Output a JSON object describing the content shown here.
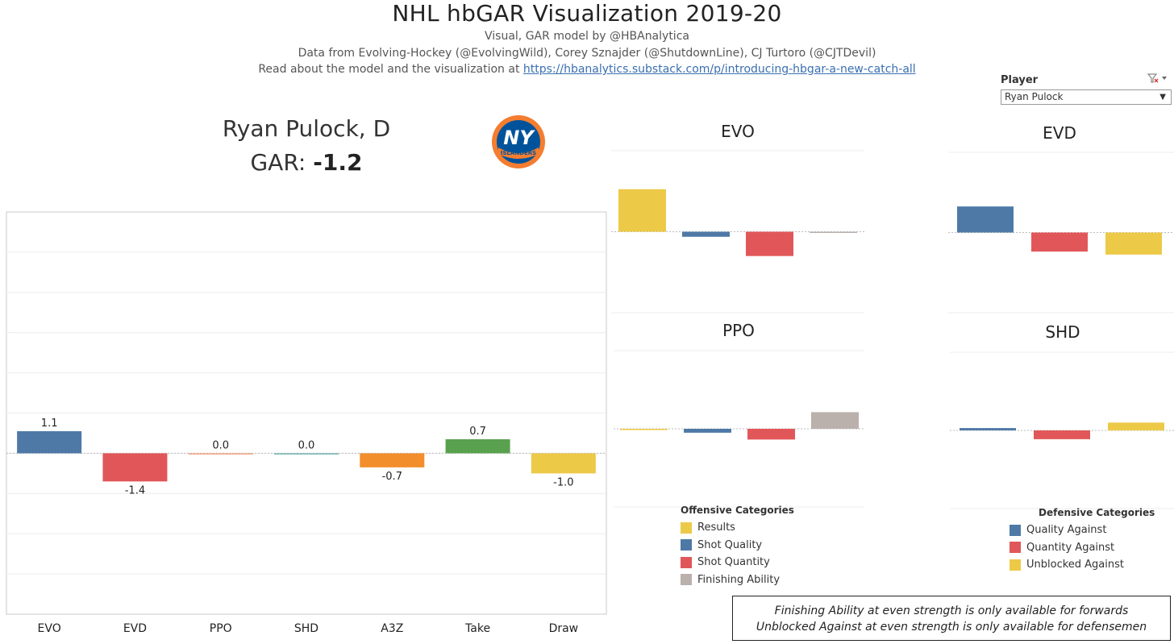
{
  "header": {
    "title": "NHL hbGAR Visualization 2019-20",
    "subtitle1": "Visual, GAR model by @HBAnalytica",
    "subtitle2": "Data from Evolving-Hockey (@EvolvingWild), Corey Sznajder (@ShutdownLine), CJ Turtoro (@CJTDevil)",
    "subtitle3_prefix": "Read about the model and the visualization at ",
    "subtitle3_link": "https://hbanalytics.substack.com/p/introducing-hbgar-a-new-catch-all"
  },
  "filter": {
    "label": "Player",
    "selected": "Ryan Pulock",
    "icon": "filter-clear-icon"
  },
  "player": {
    "name": "Ryan Pulock, D",
    "gar_label": "GAR: ",
    "gar_value": "-1.2",
    "team_logo_text": "NY",
    "team_logo_banner": "ISLANDERS"
  },
  "colors": {
    "blue": "#4e79a7",
    "red": "#e15759",
    "salmon": "#f4a582",
    "teal": "#76b7b2",
    "orange": "#f28e2b",
    "green": "#59a14f",
    "yellow": "#edc948",
    "gray": "#bab0ac"
  },
  "chart_data": [
    {
      "type": "bar",
      "categories": [
        "EVO",
        "EVD",
        "PPO",
        "SHD",
        "A3Z",
        "Take",
        "Draw"
      ],
      "values": [
        1.1,
        -1.4,
        0.0,
        0.0,
        -0.7,
        0.7,
        -1.0
      ],
      "labels": [
        "1.1",
        "-1.4",
        "0.0",
        "0.0",
        "-0.7",
        "0.7",
        "-1.0"
      ],
      "colors": [
        "#4e79a7",
        "#e15759",
        "#f4a582",
        "#76b7b2",
        "#f28e2b",
        "#59a14f",
        "#edc948"
      ],
      "ylim": [
        -8,
        12
      ],
      "grid": true
    },
    {
      "type": "bar",
      "title": "EVO",
      "series": [
        {
          "name": "Results",
          "value": 2.1
        },
        {
          "name": "Shot Quality",
          "value": -0.25
        },
        {
          "name": "Shot Quantity",
          "value": -1.2
        },
        {
          "name": "Finishing Ability",
          "value": -0.05
        }
      ],
      "ylim": [
        -4,
        4
      ]
    },
    {
      "type": "bar",
      "title": "EVD",
      "series": [
        {
          "name": "Quality Against",
          "value": 1.3
        },
        {
          "name": "Quantity Against",
          "value": -0.95
        },
        {
          "name": "Unblocked Against",
          "value": -1.1
        }
      ],
      "ylim": [
        -4,
        4
      ]
    },
    {
      "type": "bar",
      "title": "PPO",
      "series": [
        {
          "name": "Results",
          "value": -0.05
        },
        {
          "name": "Shot Quality",
          "value": -0.2
        },
        {
          "name": "Shot Quantity",
          "value": -0.55
        },
        {
          "name": "Finishing Ability",
          "value": 0.85
        }
      ],
      "ylim": [
        -4,
        4
      ]
    },
    {
      "type": "bar",
      "title": "SHD",
      "series": [
        {
          "name": "Quality Against",
          "value": 0.12
        },
        {
          "name": "Quantity Against",
          "value": -0.45
        },
        {
          "name": "Unblocked Against",
          "value": 0.4
        }
      ],
      "ylim": [
        -4,
        4
      ]
    }
  ],
  "legends": {
    "offensive": {
      "title": "Offensive Categories",
      "items": [
        {
          "label": "Results",
          "color": "#edc948"
        },
        {
          "label": "Shot Quality",
          "color": "#4e79a7"
        },
        {
          "label": "Shot Quantity",
          "color": "#e15759"
        },
        {
          "label": "Finishing Ability",
          "color": "#bab0ac"
        }
      ]
    },
    "defensive": {
      "title": "Defensive Categories",
      "items": [
        {
          "label": "Quality Against",
          "color": "#4e79a7"
        },
        {
          "label": "Quantity Against",
          "color": "#e15759"
        },
        {
          "label": "Unblocked Against",
          "color": "#edc948"
        }
      ]
    }
  },
  "notes": {
    "line1": "Finishing Ability at even strength is only available for forwards",
    "line2": "Unblocked Against at even strength is only available for defensemen"
  }
}
